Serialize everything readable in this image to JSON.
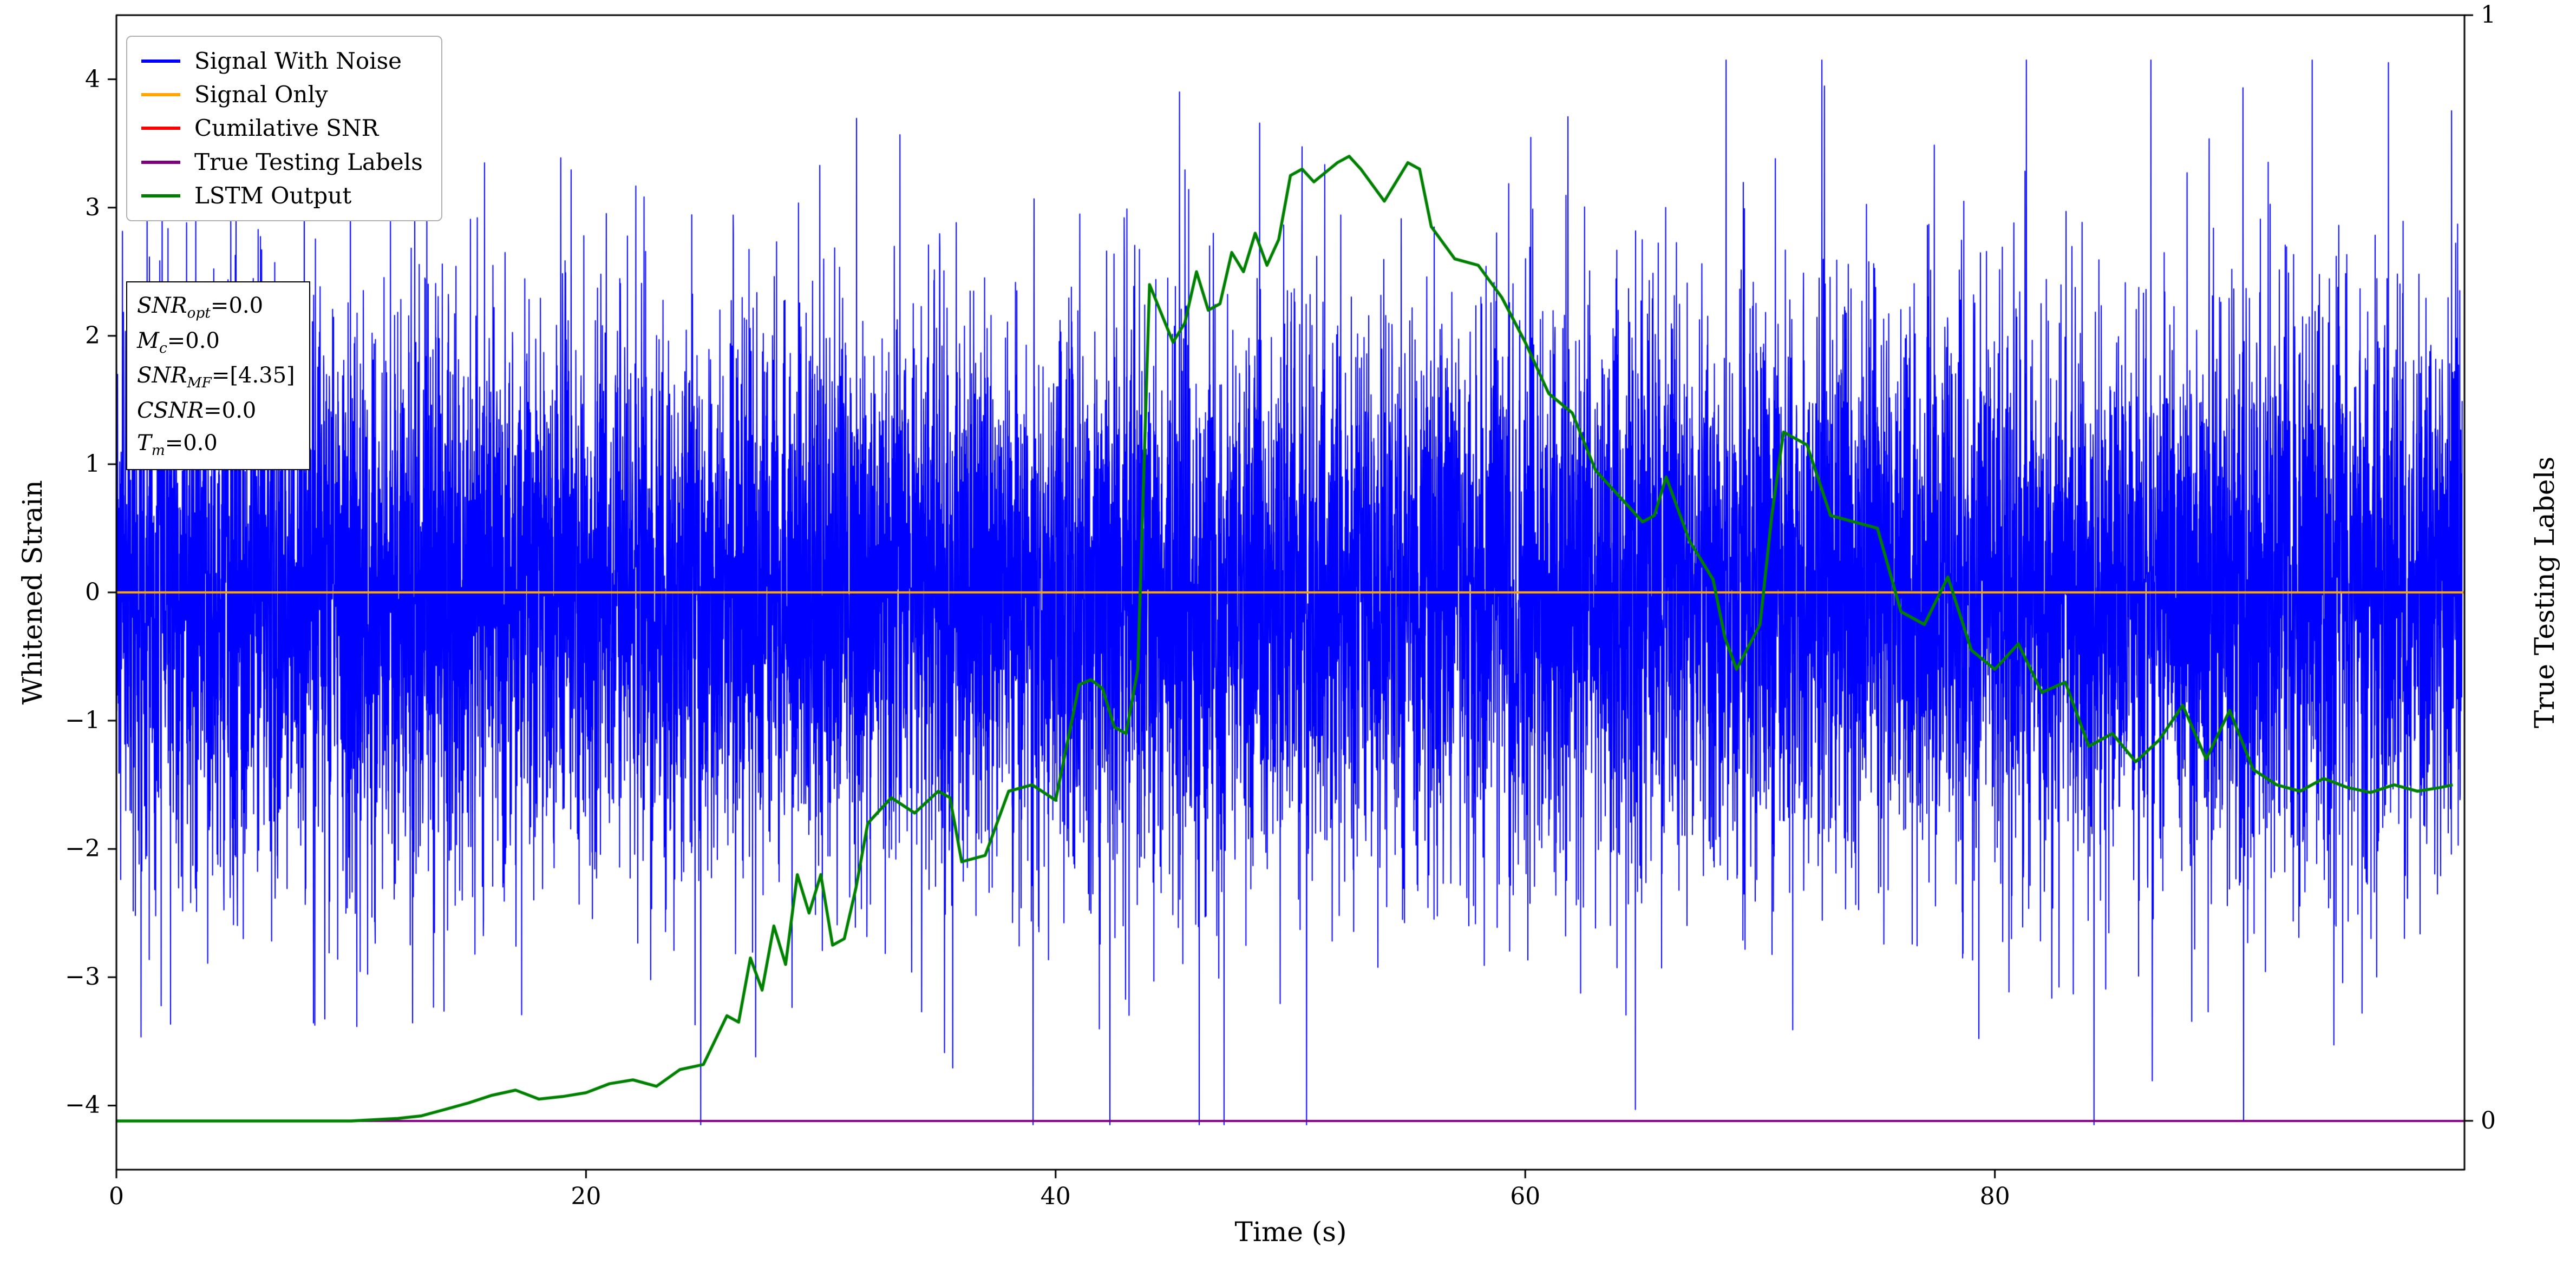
{
  "figure": {
    "background": "#ffffff",
    "xlabel": "Time (s)",
    "ylabel_left": "Whitened Strain",
    "ylabel_right": "True Testing Labels",
    "xlim": [
      0,
      100
    ],
    "ylim_left": [
      -4.5,
      4.5
    ],
    "ylim_right": [
      -0.0441,
      1.0
    ],
    "xticks": [
      0,
      20,
      40,
      60,
      80
    ],
    "yticks_left": [
      -4,
      -3,
      -2,
      -1,
      0,
      1,
      2,
      3,
      4
    ],
    "yticks_right": [
      0,
      1
    ],
    "grid": false
  },
  "legend": {
    "position": "upper-left",
    "items": [
      {
        "label": "Signal With Noise",
        "color": "#0000ff"
      },
      {
        "label": "Signal Only",
        "color": "#ffa500"
      },
      {
        "label": "Cumilative SNR",
        "color": "#ff0000"
      },
      {
        "label": "True Testing Labels",
        "color": "#800080"
      },
      {
        "label": "LSTM Output",
        "color": "#008000"
      }
    ]
  },
  "annotation": {
    "lines": [
      {
        "base": "SNR",
        "sub": "opt",
        "rest": "=0.0"
      },
      {
        "base": "M",
        "sub": "c",
        "rest": "=0.0"
      },
      {
        "base": "SNR",
        "sub": "MF",
        "rest": "=[4.35]"
      },
      {
        "base": "CSNR",
        "sub": "",
        "rest": "=0.0"
      },
      {
        "base": "T",
        "sub": "m",
        "rest": "=0.0"
      }
    ]
  },
  "chart_data": {
    "type": "line",
    "title": "",
    "xlabel": "Time (s)",
    "ylabel": "Whitened Strain",
    "ylabel_right": "True Testing Labels",
    "xlim": [
      0,
      100
    ],
    "ylim_left": [
      -4.5,
      4.5
    ],
    "ylim_right": [
      -0.0441,
      1.0
    ],
    "legend_position": "upper-left",
    "series": [
      {
        "name": "Signal With Noise",
        "color": "#0000ff",
        "kind": "noise",
        "x_range": [
          0,
          99.9
        ],
        "n_points": 12000,
        "seed": 7,
        "std": 1.1,
        "spike_fraction": 0.015,
        "spike_scale": 1.75,
        "max_abs": 4.15
      },
      {
        "name": "Signal Only",
        "color": "#ffa500",
        "kind": "hline",
        "y": 0.0
      },
      {
        "name": "Cumilative SNR",
        "color": "#ff0000",
        "kind": "hline",
        "y": -4.12
      },
      {
        "name": "True Testing Labels",
        "color": "#800080",
        "kind": "hline",
        "y": -4.12
      },
      {
        "name": "LSTM Output",
        "color": "#008000",
        "kind": "line",
        "x": [
          0,
          5,
          10,
          12,
          13,
          14,
          15,
          16,
          17,
          18,
          19,
          20,
          21,
          22,
          23,
          24,
          25,
          26,
          26.5,
          27,
          27.5,
          28,
          28.5,
          29,
          29.5,
          30,
          30.5,
          31,
          31.5,
          32,
          33,
          34,
          35,
          35.5,
          36,
          37,
          38,
          39,
          40,
          41,
          41.5,
          42,
          42.5,
          43,
          43.5,
          44,
          45,
          45.5,
          46,
          46.5,
          47,
          47.5,
          48,
          48.5,
          49,
          49.5,
          50,
          50.5,
          51,
          52,
          52.5,
          53,
          54,
          54.5,
          55,
          55.5,
          56,
          57,
          58,
          59,
          60,
          61,
          62,
          63,
          64,
          65,
          65.5,
          66,
          67,
          68,
          68.5,
          69,
          70,
          70.5,
          71,
          72,
          73,
          74,
          75,
          76,
          77,
          78,
          79,
          80,
          81,
          82,
          83,
          84,
          85,
          86,
          87,
          88,
          89,
          90,
          91,
          92,
          93,
          94,
          95,
          96,
          97,
          98,
          99,
          99.5
        ],
        "y": [
          -4.12,
          -4.12,
          -4.12,
          -4.1,
          -4.08,
          -4.03,
          -3.98,
          -3.92,
          -3.88,
          -3.95,
          -3.93,
          -3.9,
          -3.83,
          -3.8,
          -3.85,
          -3.72,
          -3.68,
          -3.3,
          -3.35,
          -2.85,
          -3.1,
          -2.6,
          -2.9,
          -2.2,
          -2.5,
          -2.2,
          -2.75,
          -2.7,
          -2.3,
          -1.8,
          -1.6,
          -1.72,
          -1.55,
          -1.6,
          -2.1,
          -2.05,
          -1.55,
          -1.5,
          -1.62,
          -0.72,
          -0.68,
          -0.75,
          -1.05,
          -1.1,
          -0.6,
          2.4,
          1.95,
          2.1,
          2.5,
          2.2,
          2.25,
          2.65,
          2.5,
          2.8,
          2.55,
          2.75,
          3.25,
          3.3,
          3.2,
          3.35,
          3.4,
          3.3,
          3.05,
          3.2,
          3.35,
          3.3,
          2.85,
          2.6,
          2.55,
          2.3,
          1.95,
          1.55,
          1.4,
          0.95,
          0.75,
          0.55,
          0.6,
          0.9,
          0.4,
          0.1,
          -0.35,
          -0.6,
          -0.25,
          0.6,
          1.25,
          1.15,
          0.6,
          0.55,
          0.5,
          -0.15,
          -0.25,
          0.12,
          -0.45,
          -0.6,
          -0.4,
          -0.78,
          -0.7,
          -1.2,
          -1.1,
          -1.32,
          -1.15,
          -0.88,
          -1.3,
          -0.92,
          -1.38,
          -1.5,
          -1.55,
          -1.45,
          -1.52,
          -1.56,
          -1.5,
          -1.55,
          -1.52,
          -1.5
        ]
      }
    ]
  }
}
